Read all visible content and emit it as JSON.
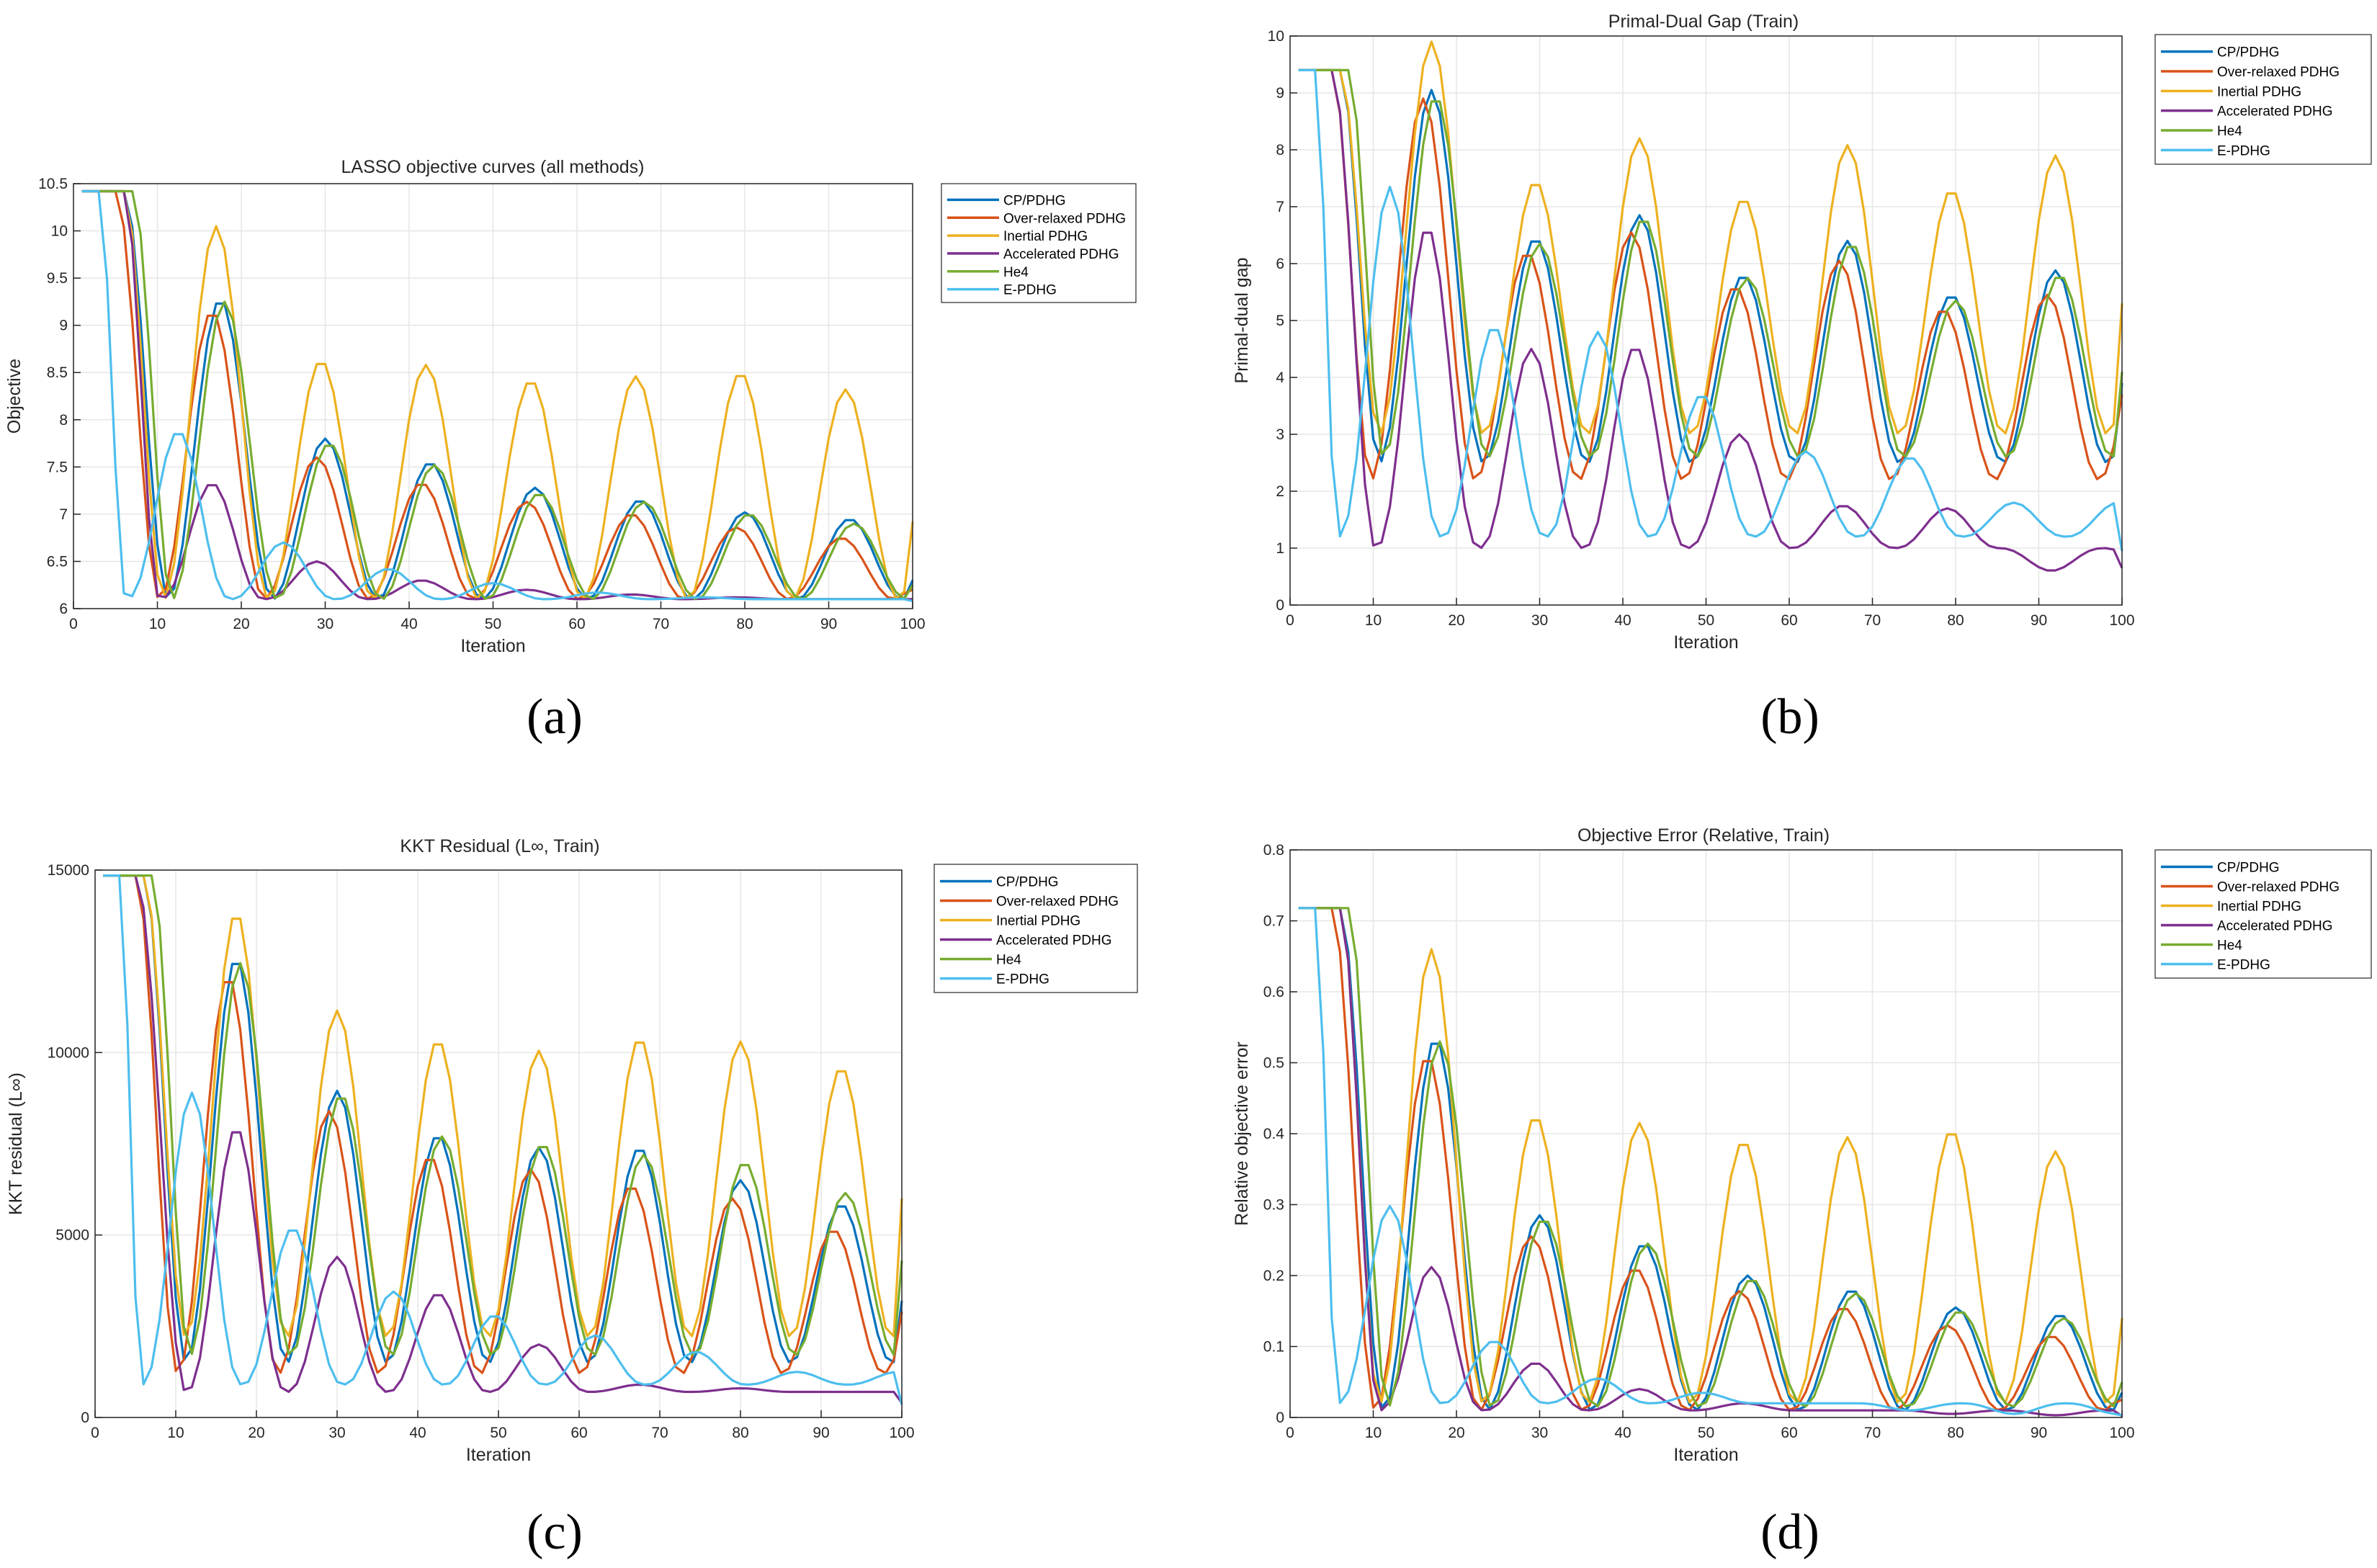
{
  "figure": {
    "colors": {
      "cp": "#0072BD",
      "over": "#D95319",
      "inertial": "#EDB120",
      "accel": "#7E2F8E",
      "he4": "#77AC30",
      "epdhg": "#4DBEEE",
      "grid": "#e6e6e6",
      "axis": "#262626"
    },
    "legend_entries": [
      "CP/PDHG",
      "Over-relaxed PDHG",
      "Inertial PDHG",
      "Accelerated PDHG",
      "He4",
      "E-PDHG"
    ]
  },
  "chart_data": [
    {
      "type": "line",
      "panel": "(a)",
      "title": "LASSO objective curves (all methods)",
      "xlabel": "Iteration",
      "ylabel": "Objective",
      "xlim": [
        0,
        100
      ],
      "ylim": [
        6,
        10.5
      ],
      "xticks": [
        0,
        10,
        20,
        30,
        40,
        50,
        60,
        70,
        80,
        90,
        100
      ],
      "yticks": [
        6,
        6.5,
        7,
        7.5,
        8,
        8.5,
        9,
        9.5,
        10,
        10.5
      ],
      "ytick_labels": [
        "6",
        "6.5",
        "7",
        "7.5",
        "8",
        "8.5",
        "9",
        "9.5",
        "10",
        "10.5"
      ],
      "legend": "outside-right-top",
      "grid": true,
      "series": [
        {
          "name": "CP/PDHG",
          "start": 10.42,
          "delay": 6,
          "drop": 3,
          "floor": 6.1,
          "period": 12.5,
          "firstPeak": 17.5,
          "peaks": [
            9.28,
            7.8,
            7.55,
            7.28,
            7.15,
            7.02,
            6.95
          ],
          "phase": 0,
          "tail": 6.3
        },
        {
          "name": "Over-relaxed PDHG",
          "start": 10.42,
          "delay": 5,
          "drop": 3,
          "floor": 6.1,
          "period": 12.5,
          "firstPeak": 16.5,
          "peaks": [
            9.15,
            7.6,
            7.33,
            7.13,
            7.0,
            6.86,
            6.75
          ],
          "phase": 0,
          "tail": 6.2
        },
        {
          "name": "Inertial PDHG",
          "start": 10.42,
          "delay": 6,
          "drop": 3,
          "floor": 6.1,
          "period": 12.5,
          "firstPeak": 17,
          "peaks": [
            10.05,
            8.63,
            8.58,
            8.42,
            8.46,
            8.5,
            8.32
          ],
          "phase": 0,
          "tail": 6.92
        },
        {
          "name": "Accelerated PDHG",
          "start": 10.42,
          "delay": 6,
          "drop": 4,
          "floor": 6.1,
          "decay": true,
          "period": 12.5,
          "firstPeak": 16.5,
          "peaks": [
            7.33,
            6.5,
            6.3,
            6.2,
            6.15,
            6.12,
            6.1
          ],
          "phase": 0,
          "tail": 6.1
        },
        {
          "name": "He4",
          "start": 10.42,
          "delay": 7,
          "drop": 3,
          "floor": 6.1,
          "period": 12.5,
          "firstPeak": 18,
          "peaks": [
            9.25,
            7.75,
            7.52,
            7.22,
            7.13,
            7.0,
            6.9
          ],
          "phase": 0,
          "tail": 6.25
        },
        {
          "name": "E-PDHG",
          "start": 10.42,
          "delay": 3,
          "drop": 4,
          "floor": 6.1,
          "decay": true,
          "period": 12.5,
          "firstPeak": 12.5,
          "peaks": [
            7.88,
            6.7,
            6.42,
            6.27,
            6.17,
            6.12,
            6.1
          ],
          "phase": 0,
          "tail": 6.08
        }
      ]
    },
    {
      "type": "line",
      "panel": "(b)",
      "title": "Primal-Dual Gap (Train)",
      "xlabel": "Iteration",
      "ylabel": "Primal-dual gap",
      "xlim": [
        0,
        100
      ],
      "ylim": [
        0,
        10
      ],
      "xticks": [
        0,
        10,
        20,
        30,
        40,
        50,
        60,
        70,
        80,
        90,
        100
      ],
      "yticks": [
        0,
        1,
        2,
        3,
        4,
        5,
        6,
        7,
        8,
        9,
        10
      ],
      "ytick_labels": [
        "0",
        "1",
        "2",
        "3",
        "4",
        "5",
        "6",
        "7",
        "8",
        "9",
        "10"
      ],
      "legend": "outside-right-top",
      "grid": true,
      "series": [
        {
          "name": "CP/PDHG",
          "start": 9.4,
          "delay": 6,
          "drop": 4,
          "floor": 2.5,
          "period": 12.5,
          "firstPeak": 17,
          "peaks": [
            9.05,
            6.45,
            6.85,
            5.8,
            6.4,
            5.45,
            5.88
          ],
          "phase": 0,
          "tail": 3.9
        },
        {
          "name": "Over-relaxed PDHG",
          "start": 9.4,
          "delay": 5,
          "drop": 4,
          "floor": 2.2,
          "period": 12.5,
          "firstPeak": 16,
          "peaks": [
            8.9,
            6.2,
            6.55,
            5.6,
            6.05,
            5.2,
            5.45
          ],
          "phase": 0,
          "tail": 3.7
        },
        {
          "name": "Inertial PDHG",
          "start": 9.4,
          "delay": 6,
          "drop": 4,
          "floor": 3.0,
          "period": 12.5,
          "firstPeak": 17,
          "peaks": [
            9.9,
            7.45,
            8.2,
            7.15,
            8.08,
            7.3,
            7.9
          ],
          "phase": 0,
          "tail": 5.3
        },
        {
          "name": "Accelerated PDHG",
          "start": 9.4,
          "delay": 5,
          "drop": 4,
          "floor": 1.0,
          "decay": true,
          "period": 12.5,
          "firstPeak": 16.5,
          "peaks": [
            6.65,
            4.5,
            4.55,
            3.0,
            1.75,
            1.7,
            0.6
          ],
          "phase": 0,
          "tail": 0.65
        },
        {
          "name": "He4",
          "start": 9.4,
          "delay": 7,
          "drop": 4,
          "floor": 2.6,
          "period": 12.5,
          "firstPeak": 17.5,
          "peaks": [
            8.95,
            6.35,
            6.8,
            5.75,
            6.35,
            5.35,
            5.8
          ],
          "phase": 0,
          "tail": 4.1
        },
        {
          "name": "E-PDHG",
          "start": 9.4,
          "delay": 3,
          "drop": 4,
          "floor": 1.2,
          "decay": true,
          "period": 12.5,
          "firstPeak": 12,
          "peaks": [
            7.35,
            4.9,
            4.8,
            3.7,
            2.7,
            2.6,
            1.8
          ],
          "phase": 0,
          "tail": 0.95
        }
      ]
    },
    {
      "type": "line",
      "panel": "(c)",
      "title": "KKT Residual (L∞, Train)",
      "xlabel": "Iteration",
      "ylabel": "KKT residual (L∞)",
      "xlim": [
        0,
        100
      ],
      "ylim": [
        0,
        15000
      ],
      "xticks": [
        0,
        10,
        20,
        30,
        40,
        50,
        60,
        70,
        80,
        90,
        100
      ],
      "yticks": [
        0,
        5000,
        10000,
        15000
      ],
      "ytick_labels": [
        "0",
        "5000",
        "10000",
        "15000"
      ],
      "legend": "outside-right-top",
      "grid": true,
      "series": [
        {
          "name": "CP/PDHG",
          "start": 14850,
          "delay": 6,
          "drop": 4,
          "floor": 1500,
          "period": 12.5,
          "firstPeak": 17.5,
          "peaks": [
            12600,
            8950,
            7750,
            7400,
            7400,
            6500,
            5850
          ],
          "phase": 0,
          "tail": 3200
        },
        {
          "name": "Over-relaxed PDHG",
          "start": 14850,
          "delay": 5,
          "drop": 4,
          "floor": 1200,
          "period": 12.5,
          "firstPeak": 16.5,
          "peaks": [
            12100,
            8400,
            7150,
            6800,
            6350,
            6000,
            5150
          ],
          "phase": 0,
          "tail": 2900
        },
        {
          "name": "Inertial PDHG",
          "start": 14850,
          "delay": 6,
          "drop": 4,
          "floor": 2200,
          "period": 12.5,
          "firstPeak": 17.5,
          "peaks": [
            13850,
            11150,
            10350,
            10050,
            10400,
            10300,
            9600
          ],
          "phase": 0,
          "tail": 6000
        },
        {
          "name": "Accelerated PDHG",
          "start": 14850,
          "delay": 5,
          "drop": 5,
          "floor": 700,
          "decay": true,
          "period": 12.5,
          "firstPeak": 17.5,
          "peaks": [
            7950,
            4400,
            3400,
            2000,
            900,
            800,
            700
          ],
          "phase": 0,
          "tail": 400
        },
        {
          "name": "He4",
          "start": 14850,
          "delay": 7,
          "drop": 4,
          "floor": 1700,
          "period": 12.5,
          "firstPeak": 18,
          "peaks": [
            12450,
            8850,
            7700,
            7500,
            7200,
            7000,
            6150
          ],
          "phase": 0,
          "tail": 4300
        },
        {
          "name": "E-PDHG",
          "start": 14850,
          "delay": 3,
          "drop": 4,
          "floor": 900,
          "decay": true,
          "period": 12.5,
          "firstPeak": 12,
          "peaks": [
            8900,
            5200,
            3450,
            2800,
            2250,
            1800,
            1250
          ],
          "phase": 0,
          "tail": 350
        }
      ]
    },
    {
      "type": "line",
      "panel": "(d)",
      "title": "Objective Error (Relative, Train)",
      "xlabel": "Iteration",
      "ylabel": "Relative objective error",
      "xlim": [
        0,
        100
      ],
      "ylim": [
        0,
        0.8
      ],
      "xticks": [
        0,
        10,
        20,
        30,
        40,
        50,
        60,
        70,
        80,
        90,
        100
      ],
      "yticks": [
        0,
        0.1,
        0.2,
        0.3,
        0.4,
        0.5,
        0.6,
        0.7,
        0.8
      ],
      "ytick_labels": [
        "0",
        "0.1",
        "0.2",
        "0.3",
        "0.4",
        "0.5",
        "0.6",
        "0.7",
        "0.8"
      ],
      "legend": "outside-right-top",
      "grid": true,
      "series": [
        {
          "name": "CP/PDHG",
          "start": 0.718,
          "delay": 6,
          "drop": 3,
          "floor": 0.01,
          "period": 12.5,
          "firstPeak": 17.5,
          "peaks": [
            0.535,
            0.285,
            0.245,
            0.2,
            0.18,
            0.155,
            0.145
          ],
          "phase": 0,
          "tail": 0.035
        },
        {
          "name": "Over-relaxed PDHG",
          "start": 0.718,
          "delay": 5,
          "drop": 3,
          "floor": 0.01,
          "period": 12.5,
          "firstPeak": 16.5,
          "peaks": [
            0.51,
            0.255,
            0.21,
            0.178,
            0.155,
            0.13,
            0.115
          ],
          "phase": 0,
          "tail": 0.025
        },
        {
          "name": "Inertial PDHG",
          "start": 0.718,
          "delay": 6,
          "drop": 3,
          "floor": 0.02,
          "period": 12.5,
          "firstPeak": 17,
          "peaks": [
            0.66,
            0.425,
            0.415,
            0.39,
            0.395,
            0.405,
            0.375
          ],
          "phase": 0,
          "tail": 0.14
        },
        {
          "name": "Accelerated PDHG",
          "start": 0.718,
          "delay": 6,
          "drop": 4,
          "floor": 0.01,
          "decay": true,
          "period": 12.5,
          "firstPeak": 17,
          "peaks": [
            0.212,
            0.077,
            0.04,
            0.02,
            0.01,
            0.005,
            0.003
          ],
          "phase": 0,
          "tail": 0.002
        },
        {
          "name": "He4",
          "start": 0.718,
          "delay": 7,
          "drop": 3,
          "floor": 0.015,
          "period": 12.5,
          "firstPeak": 18,
          "peaks": [
            0.53,
            0.28,
            0.245,
            0.195,
            0.175,
            0.15,
            0.14
          ],
          "phase": 0,
          "tail": 0.05
        },
        {
          "name": "E-PDHG",
          "start": 0.718,
          "delay": 3,
          "drop": 4,
          "floor": 0.02,
          "decay": true,
          "period": 12.5,
          "firstPeak": 12,
          "peaks": [
            0.298,
            0.108,
            0.055,
            0.035,
            0.02,
            0.01,
            0.005
          ],
          "phase": 0,
          "tail": 0.003
        }
      ]
    }
  ],
  "panel_labels": [
    "(a)",
    "(b)",
    "(c)",
    "(d)"
  ]
}
